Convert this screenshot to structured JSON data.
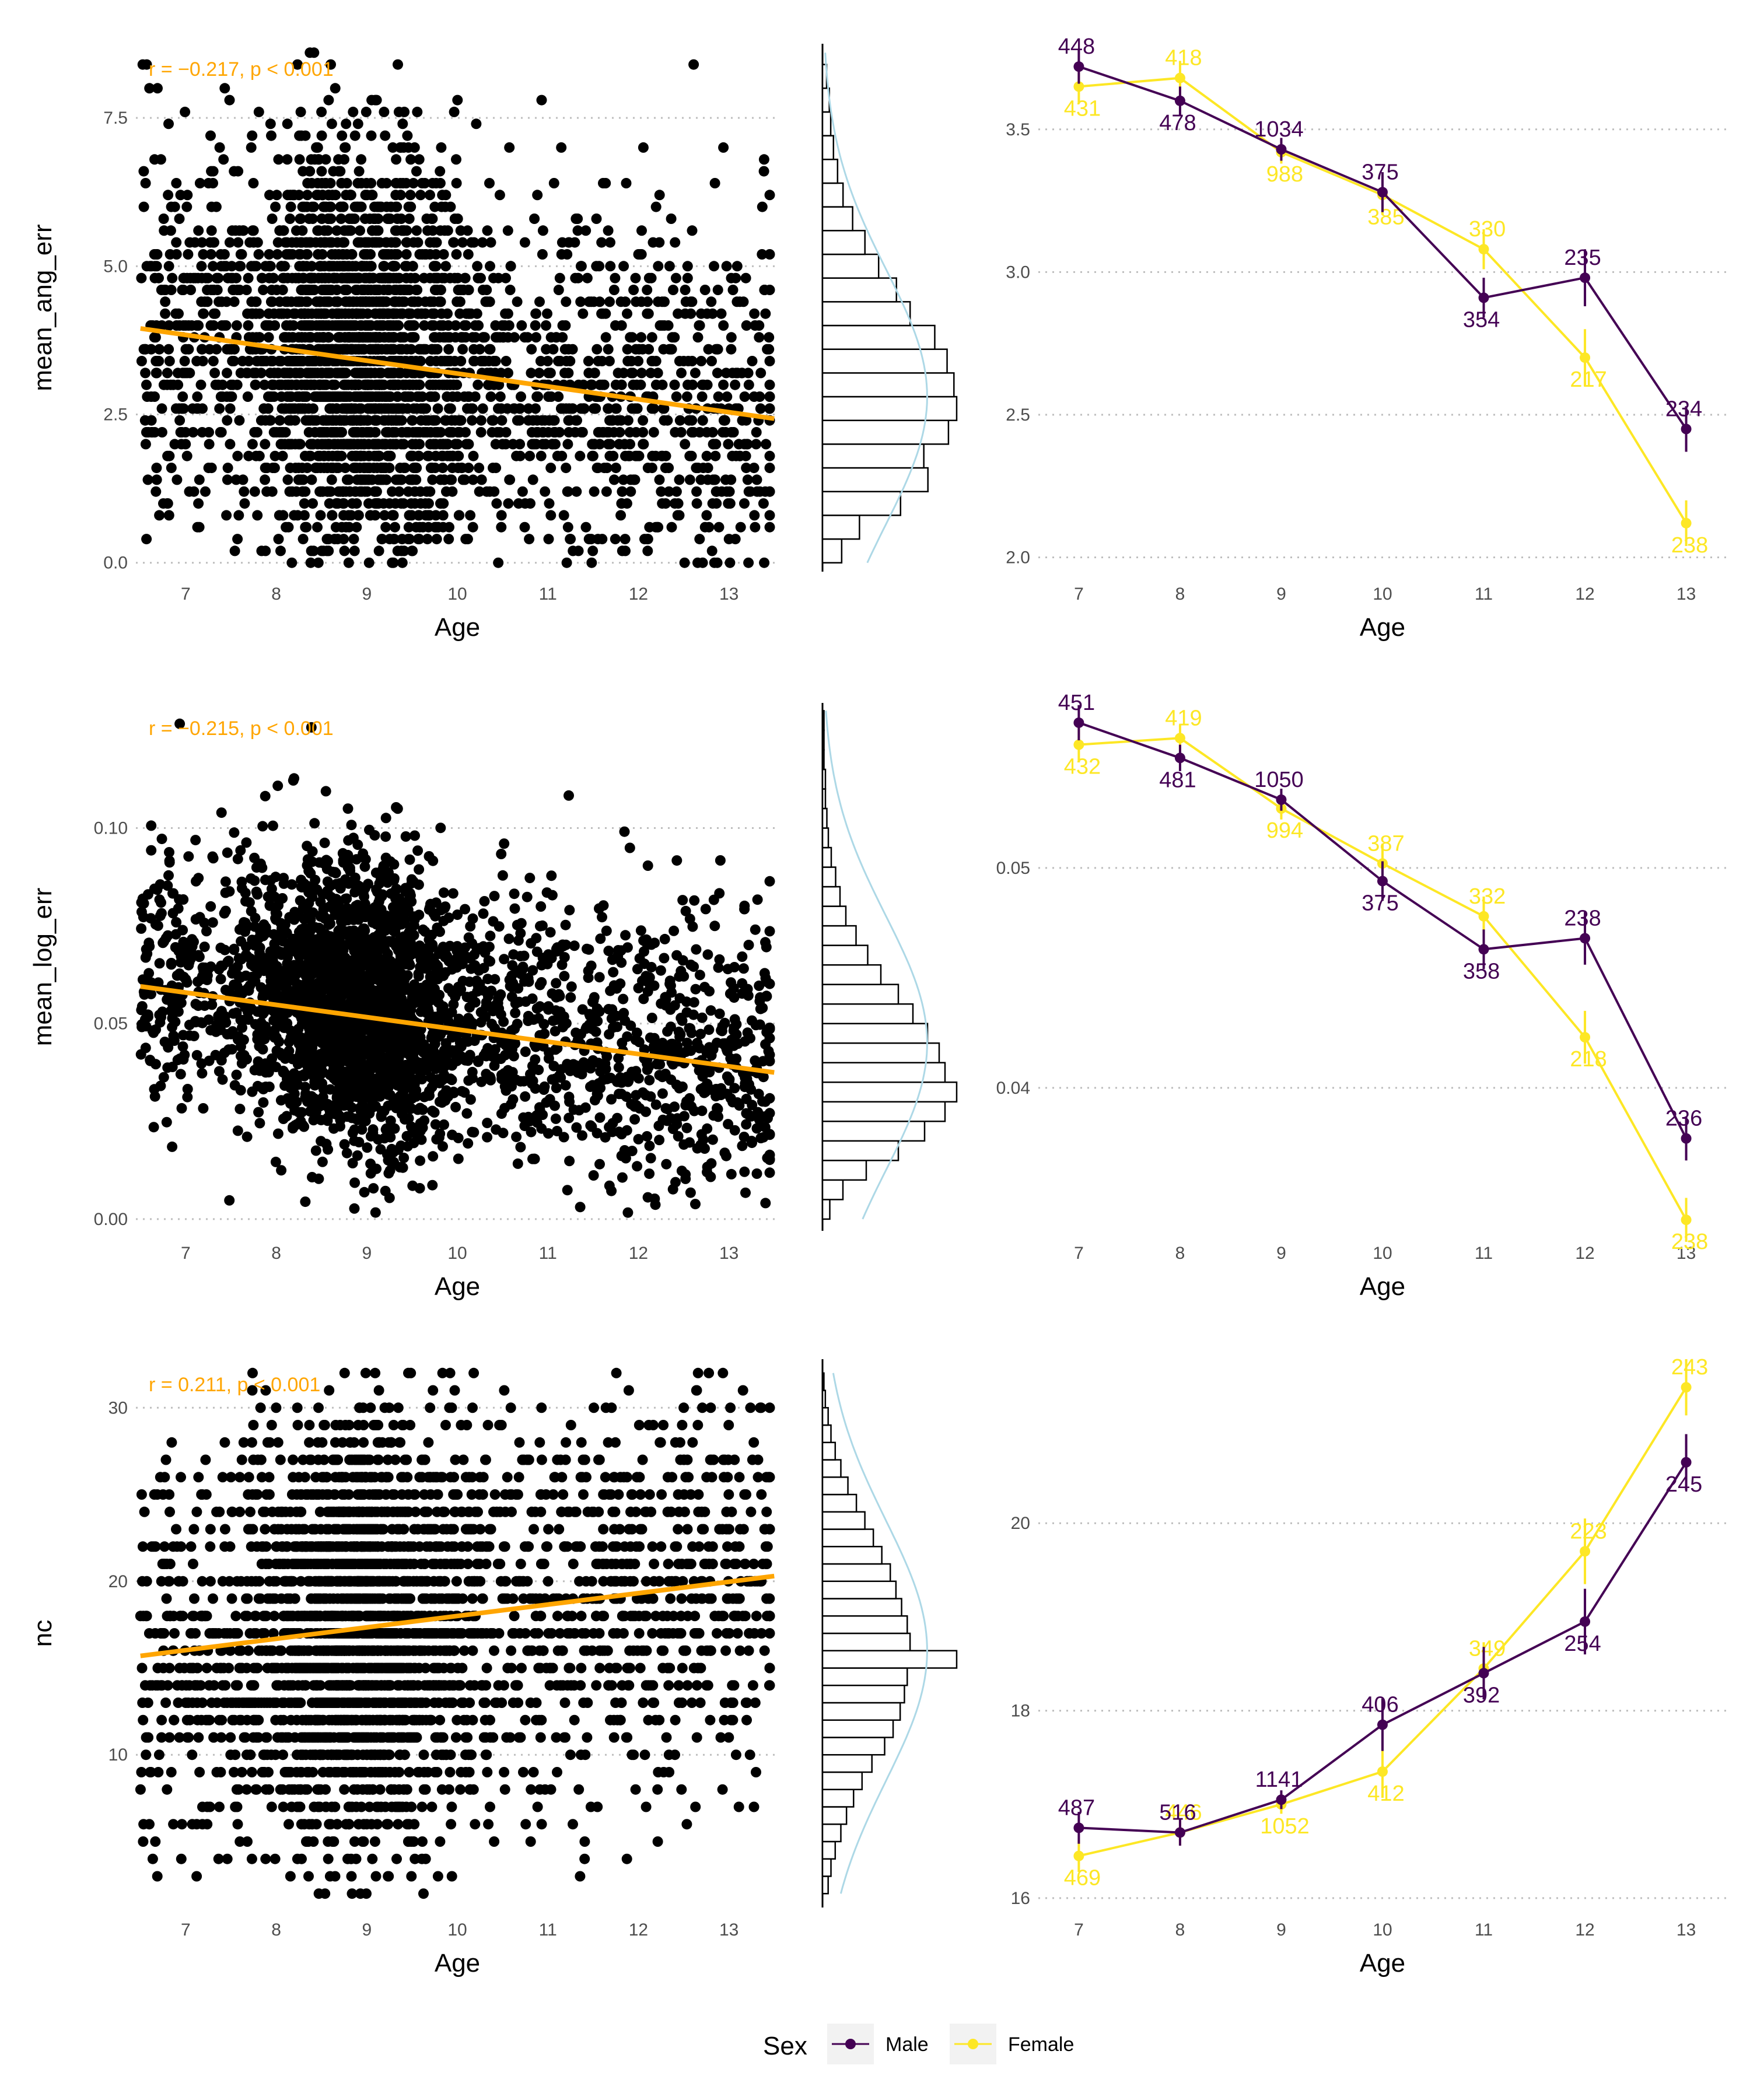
{
  "colors": {
    "male": "#440154",
    "female": "#FDE725",
    "regression": "#FFA500",
    "density": "#ADD8E6",
    "points": "#000000",
    "grid": "#BEBEBE"
  },
  "legend": {
    "title": "Sex",
    "items": [
      {
        "label": "Male",
        "color": "#440154"
      },
      {
        "label": "Female",
        "color": "#FDE725"
      }
    ]
  },
  "chart_data": [
    {
      "type": "scatter",
      "panel": "row1-left",
      "xlabel": "Age",
      "ylabel": "mean_ang_err",
      "annotation": "r = −0.217, p < 0.001",
      "xlim": [
        6.45,
        13.55
      ],
      "ylim": [
        -0.15,
        8.75
      ],
      "xticks": [
        7,
        8,
        9,
        10,
        11,
        12,
        13
      ],
      "yticks": [
        0.0,
        2.5,
        5.0,
        7.5
      ],
      "ytick_labels": [
        "0.0",
        "2.5",
        "5.0",
        "7.5"
      ],
      "point_count_approx": 5000,
      "point_y_step": 0.2,
      "point_y_range": [
        0.0,
        8.6
      ],
      "point_y_mean": 2.9,
      "regression": {
        "x": [
          6.5,
          13.5
        ],
        "y": [
          3.95,
          2.43
        ]
      },
      "marginal_histogram": {
        "bin_width": 0.4,
        "bins_start": 0.0,
        "counts": [
          14,
          27,
          57,
          77,
          74,
          92,
          98,
          96,
          91,
          82,
          64,
          54,
          41,
          31,
          22,
          15,
          11,
          8,
          6,
          5,
          3,
          3
        ],
        "density_peak": 2.8
      }
    },
    {
      "type": "line",
      "panel": "row1-right",
      "xlabel": "Age",
      "ylabel": "",
      "xlim": [
        6.6,
        13.4
      ],
      "ylim": [
        1.95,
        3.8
      ],
      "xticks": [
        7,
        8,
        9,
        10,
        11,
        12,
        13
      ],
      "yticks": [
        2.0,
        2.5,
        3.0,
        3.5
      ],
      "ytick_labels": [
        "2.0",
        "2.5",
        "3.0",
        "3.5"
      ],
      "x": [
        7,
        8,
        9,
        10,
        11,
        12,
        13
      ],
      "series": [
        {
          "name": "Male",
          "values": [
            3.72,
            3.6,
            3.43,
            3.28,
            2.91,
            2.98,
            2.45
          ],
          "err": [
            0.06,
            0.05,
            0.04,
            0.07,
            0.07,
            0.1,
            0.08
          ],
          "n": [
            "448",
            "478",
            "1034",
            "375",
            "354",
            "235",
            "234"
          ]
        },
        {
          "name": "Female",
          "values": [
            3.65,
            3.68,
            3.42,
            3.27,
            3.08,
            2.7,
            2.12
          ],
          "err": [
            0.06,
            0.06,
            0.04,
            0.07,
            0.07,
            0.1,
            0.08
          ],
          "n": [
            "431",
            "418",
            "988",
            "385",
            "330",
            "217",
            "238"
          ]
        }
      ]
    },
    {
      "type": "scatter",
      "panel": "row2-left",
      "xlabel": "Age",
      "ylabel": "mean_log_err",
      "annotation": "r = −0.215, p < 0.001",
      "xlim": [
        6.45,
        13.55
      ],
      "ylim": [
        -0.003,
        0.132
      ],
      "xticks": [
        7,
        8,
        9,
        10,
        11,
        12,
        13
      ],
      "yticks": [
        0.0,
        0.05,
        0.1
      ],
      "ytick_labels": [
        "0.00",
        "0.05",
        "0.10"
      ],
      "point_count_approx": 5000,
      "point_y_range": [
        0.0,
        0.13
      ],
      "point_y_mean": 0.05,
      "regression": {
        "x": [
          6.5,
          13.5
        ],
        "y": [
          0.0595,
          0.0375
        ]
      },
      "marginal_histogram": {
        "bin_width": 0.005,
        "bins_start": 0.0,
        "counts": [
          5,
          14,
          30,
          52,
          70,
          84,
          92,
          84,
          80,
          72,
          62,
          52,
          40,
          31,
          23,
          16,
          12,
          9,
          6,
          4,
          3,
          2,
          2,
          1,
          1,
          1
        ],
        "density_peak": 0.045
      }
    },
    {
      "type": "line",
      "panel": "row2-right",
      "xlabel": "Age",
      "ylabel": "",
      "xlim": [
        6.6,
        13.4
      ],
      "ylim": [
        0.0335,
        0.0575
      ],
      "xticks": [
        7,
        8,
        9,
        10,
        11,
        12,
        13
      ],
      "yticks": [
        0.04,
        0.05
      ],
      "ytick_labels": [
        "0.04",
        "0.05"
      ],
      "x": [
        7,
        8,
        9,
        10,
        11,
        12,
        13
      ],
      "series": [
        {
          "name": "Male",
          "values": [
            0.0566,
            0.055,
            0.0531,
            0.0494,
            0.0463,
            0.0468,
            0.0377
          ],
          "err": [
            0.0008,
            0.0006,
            0.0005,
            0.0009,
            0.0009,
            0.0012,
            0.001
          ],
          "n": [
            "451",
            "481",
            "1050",
            "375",
            "358",
            "238",
            "236"
          ]
        },
        {
          "name": "Female",
          "values": [
            0.0556,
            0.0559,
            0.0527,
            0.0502,
            0.0478,
            0.0423,
            0.034
          ],
          "err": [
            0.0008,
            0.0006,
            0.0005,
            0.0009,
            0.0009,
            0.0012,
            0.001
          ],
          "n": [
            "432",
            "419",
            "994",
            "387",
            "332",
            "218",
            "238"
          ]
        }
      ]
    },
    {
      "type": "scatter",
      "panel": "row3-left",
      "xlabel": "Age",
      "ylabel": "nc",
      "annotation": "r = 0.211, p < 0.001",
      "xlim": [
        6.45,
        13.55
      ],
      "ylim": [
        1.2,
        32.8
      ],
      "xticks": [
        7,
        8,
        9,
        10,
        11,
        12,
        13
      ],
      "yticks": [
        10,
        20,
        30
      ],
      "ytick_labels": [
        "10",
        "20",
        "30"
      ],
      "point_count_approx": 5000,
      "point_y_step": 1,
      "point_y_range": [
        2,
        32
      ],
      "point_y_mean": 18,
      "regression": {
        "x": [
          6.5,
          13.5
        ],
        "y": [
          15.7,
          20.3
        ]
      },
      "marginal_histogram": {
        "bin_width": 1,
        "bins_start": 2,
        "counts": [
          4,
          6,
          9,
          13,
          17,
          22,
          28,
          35,
          44,
          50,
          55,
          58,
          60,
          95,
          62,
          60,
          56,
          52,
          48,
          42,
          36,
          30,
          24,
          18,
          13,
          9,
          6,
          4,
          2,
          1
        ],
        "density_peak": 16
      }
    },
    {
      "type": "line",
      "panel": "row3-right",
      "xlabel": "Age",
      "ylabel": "",
      "xlim": [
        6.6,
        13.4
      ],
      "ylim": [
        15.9,
        21.75
      ],
      "xticks": [
        7,
        8,
        9,
        10,
        11,
        12,
        13
      ],
      "yticks": [
        16,
        18,
        20
      ],
      "ytick_labels": [
        "16",
        "18",
        "20"
      ],
      "x": [
        7,
        8,
        9,
        10,
        11,
        12,
        13
      ],
      "series": [
        {
          "name": "Male",
          "values": [
            16.75,
            16.7,
            17.05,
            17.85,
            18.4,
            18.95,
            20.65
          ],
          "err": [
            0.17,
            0.14,
            0.1,
            0.28,
            0.28,
            0.35,
            0.3
          ],
          "n": [
            "487",
            "516",
            "1141",
            "406",
            "392",
            "254",
            "245"
          ]
        },
        {
          "name": "Female",
          "values": [
            16.45,
            16.7,
            17.0,
            17.35,
            18.45,
            19.7,
            21.45
          ],
          "err": [
            0.17,
            0.14,
            0.1,
            0.28,
            0.28,
            0.35,
            0.3
          ],
          "n": [
            "469",
            "446",
            "1052",
            "412",
            "349",
            "223",
            "243"
          ]
        }
      ]
    }
  ]
}
